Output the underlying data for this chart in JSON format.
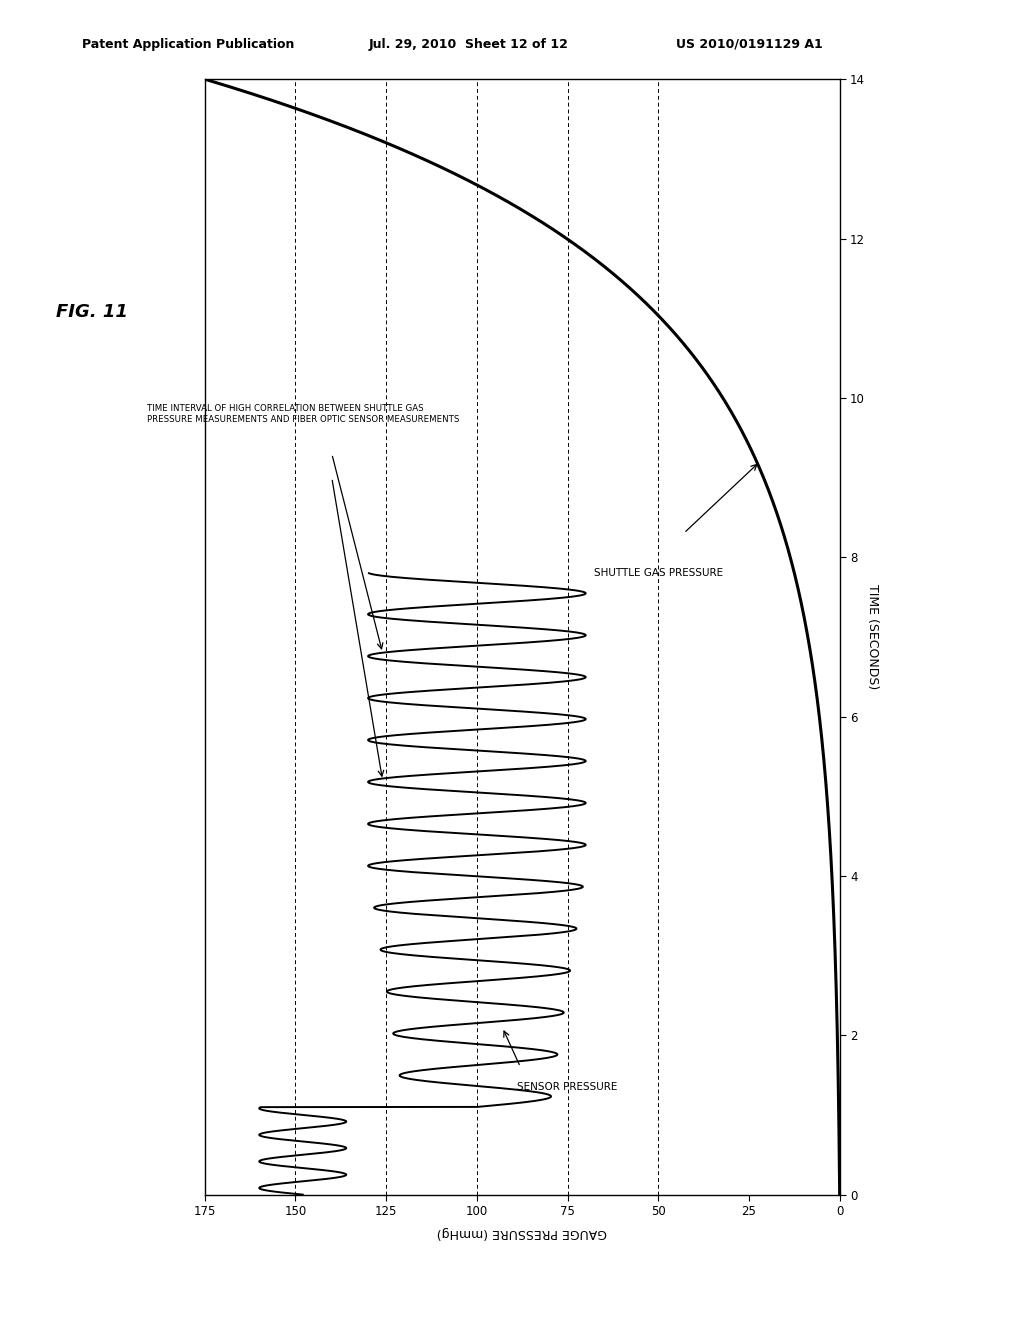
{
  "fig_label": "FIG. 11",
  "patent_header_left": "Patent Application Publication",
  "patent_header_mid": "Jul. 29, 2010  Sheet 12 of 12",
  "patent_header_right": "US 2010/0191129 A1",
  "xlabel_rotated": "GAUGE PRESSURE (mmHg)",
  "ylabel_right": "TIME (SECONDS)",
  "xlim_left": 175,
  "xlim_right": 0,
  "ylim_bottom": 0,
  "ylim_top": 14,
  "xticks": [
    0,
    25,
    50,
    75,
    100,
    125,
    150,
    175
  ],
  "yticks": [
    0,
    2,
    4,
    6,
    8,
    10,
    12,
    14
  ],
  "vlines_pressure": [
    150,
    125,
    100,
    75,
    50
  ],
  "sensor_pressure_label": "SENSOR PRESSURE",
  "shuttle_gas_label": "SHUTTLE GAS PRESSURE",
  "annotation_text_line1": "TIME INTERVAL OF HIGH CORRELATION BETWEEN SHUTTLE GAS",
  "annotation_text_line2": "PRESSURE MEASUREMENTS AND FIBER OPTIC SENSOR MEASUREMENTS",
  "background_color": "#ffffff",
  "line_color": "#000000"
}
